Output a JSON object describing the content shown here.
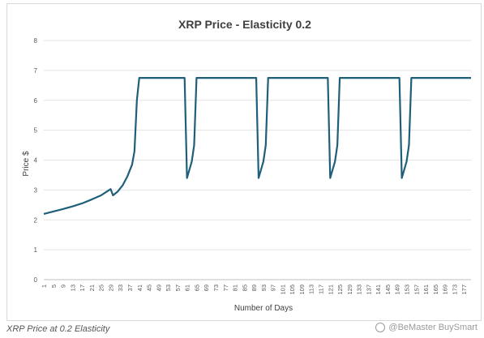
{
  "chart_data": {
    "type": "line",
    "title": "XRP Price - Elasticity 0.2",
    "xlabel": "Number of Days",
    "ylabel": "Price $",
    "ylim": [
      0,
      8
    ],
    "yticks": [
      "0",
      "1",
      "2",
      "3",
      "4",
      "5",
      "6",
      "7",
      "8"
    ],
    "xlim": [
      1,
      180
    ],
    "xticks": [
      1,
      5,
      9,
      13,
      17,
      21,
      25,
      29,
      33,
      37,
      41,
      45,
      49,
      53,
      57,
      61,
      65,
      69,
      73,
      77,
      81,
      85,
      89,
      93,
      97,
      101,
      105,
      109,
      113,
      117,
      121,
      125,
      129,
      133,
      137,
      141,
      145,
      149,
      153,
      157,
      161,
      165,
      169,
      173,
      177
    ],
    "grid": true,
    "legend": "none",
    "line_color": "#1f5f7a",
    "series": [
      {
        "x": [
          1,
          5,
          9,
          13,
          17,
          21,
          25,
          29,
          30,
          32,
          34,
          36,
          38,
          39,
          40,
          41,
          42,
          45,
          55,
          60,
          61,
          63,
          64,
          65,
          66,
          75,
          85,
          90,
          91,
          93,
          94,
          95,
          96,
          105,
          115,
          120,
          121,
          123,
          124,
          125,
          126,
          135,
          145,
          150,
          151,
          153,
          154,
          155,
          156,
          165,
          175,
          180
        ],
        "y": [
          2.2,
          2.28,
          2.36,
          2.45,
          2.55,
          2.68,
          2.82,
          3.03,
          2.82,
          2.95,
          3.15,
          3.45,
          3.85,
          4.3,
          6.0,
          6.75,
          6.75,
          6.75,
          6.75,
          6.75,
          3.4,
          3.95,
          4.5,
          6.75,
          6.75,
          6.75,
          6.75,
          6.75,
          3.4,
          3.95,
          4.5,
          6.75,
          6.75,
          6.75,
          6.75,
          6.75,
          3.4,
          3.95,
          4.5,
          6.75,
          6.75,
          6.75,
          6.75,
          6.75,
          3.4,
          3.95,
          4.5,
          6.75,
          6.75,
          6.75,
          6.75,
          6.75
        ]
      }
    ]
  },
  "caption": "XRP Price at 0.2 Elasticity",
  "watermark": "@BeMaster BuySmart"
}
